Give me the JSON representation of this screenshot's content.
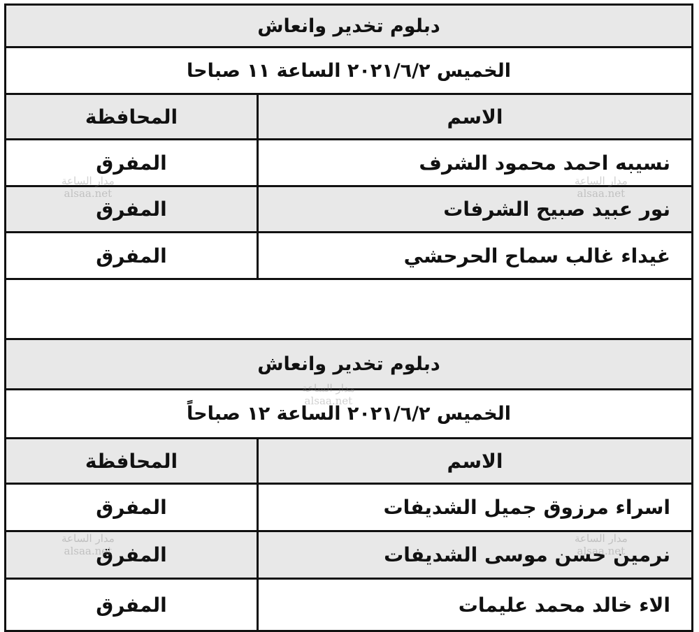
{
  "watermark": {
    "arabic": "مدار الساعة",
    "latin": "alsaa.net"
  },
  "headers": {
    "name": "الاسم",
    "governorate": "المحافظة"
  },
  "tables": [
    {
      "title": "دبلوم تخدير وانعاش",
      "datetime": "الخميس ٢٠٢١/٦/٢ الساعة ١١ صباحا",
      "rows": [
        {
          "name": "نسيبه احمد محمود الشرف",
          "governorate": "المفرق"
        },
        {
          "name": "نور عبيد صبيح الشرفات",
          "governorate": "المفرق"
        },
        {
          "name": "غيداء غالب سماح الحرحشي",
          "governorate": "المفرق"
        }
      ]
    },
    {
      "title": "دبلوم تخدير وانعاش",
      "datetime": "الخميس ٢٠٢١/٦/٢ الساعة ١٢ صباحاً",
      "rows": [
        {
          "name": "اسراء مرزوق جميل الشديفات",
          "governorate": "المفرق"
        },
        {
          "name": "نرمين حسن موسى الشديفات",
          "governorate": "المفرق"
        },
        {
          "name": "الاء خالد محمد عليمات",
          "governorate": "المفرق"
        }
      ]
    }
  ]
}
